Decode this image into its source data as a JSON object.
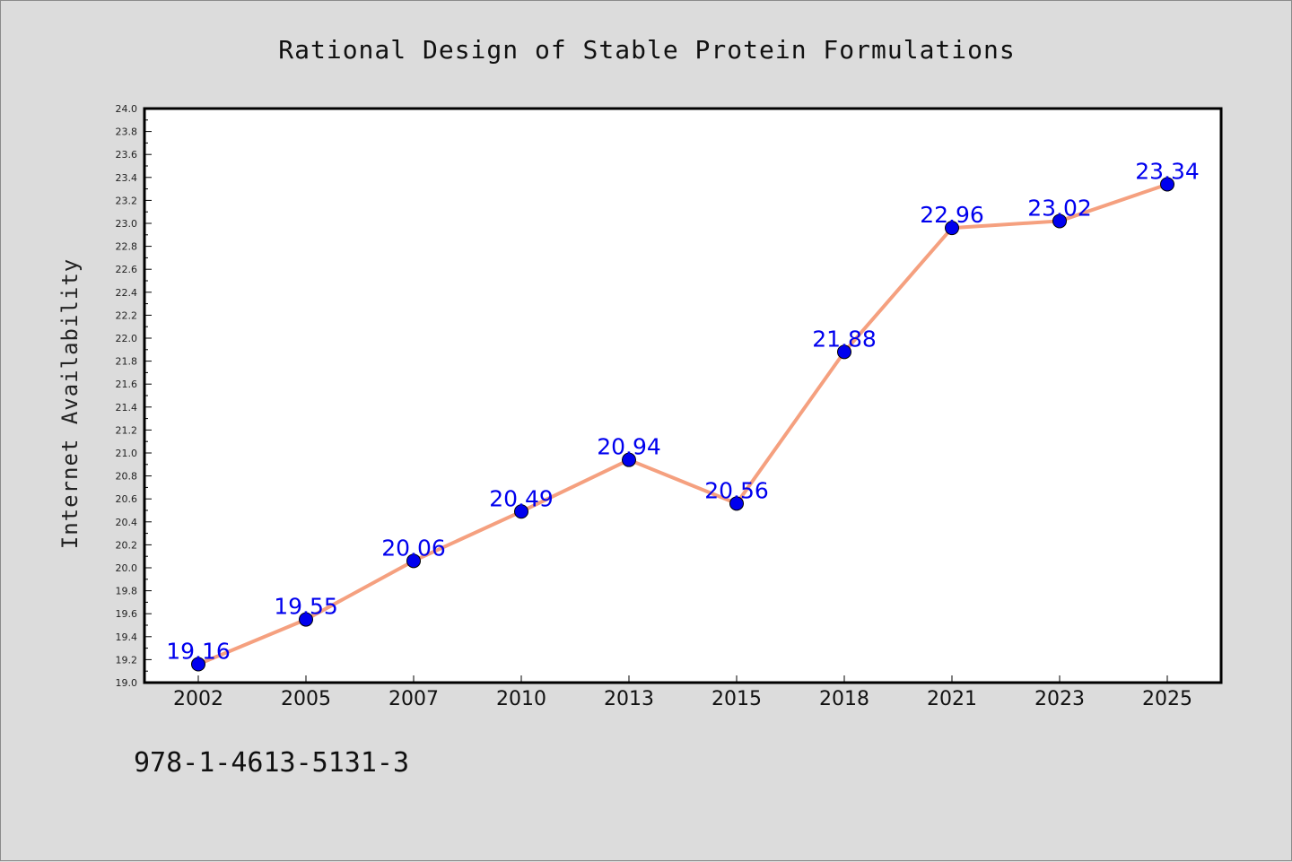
{
  "chart_data": {
    "type": "line",
    "title": "Rational Design of Stable Protein Formulations",
    "xlabel": "",
    "ylabel": "Internet Availability",
    "categories": [
      "2002",
      "2005",
      "2007",
      "2010",
      "2013",
      "2015",
      "2018",
      "2021",
      "2023",
      "2025"
    ],
    "series": [
      {
        "values": [
          19.16,
          19.55,
          20.06,
          20.49,
          20.94,
          20.56,
          21.88,
          22.96,
          23.02,
          23.34
        ],
        "line_color": "#f5a07f",
        "marker_color": "#0000ee"
      }
    ],
    "data_labels": [
      "19.16",
      "19.55",
      "20.06",
      "20.49",
      "20.94",
      "20.56",
      "21.88",
      "22.96",
      "23.02",
      "23.34"
    ],
    "ylim": [
      19.0,
      24.0
    ],
    "y_ticks": [
      "19.0",
      "19.2",
      "19.4",
      "19.6",
      "19.8",
      "20.0",
      "20.2",
      "20.4",
      "20.6",
      "20.8",
      "21.0",
      "21.2",
      "21.4",
      "21.6",
      "21.8",
      "22.0",
      "22.2",
      "22.4",
      "22.6",
      "22.8",
      "23.0",
      "23.2",
      "23.4",
      "23.6",
      "23.8",
      "24.0"
    ],
    "grid": false,
    "legend": "none"
  },
  "footer": {
    "isbn": "978-1-4613-5131-3"
  },
  "colors": {
    "background": "#dcdcdc",
    "plot_background": "#ffffff",
    "label_color": "#0000ee"
  }
}
